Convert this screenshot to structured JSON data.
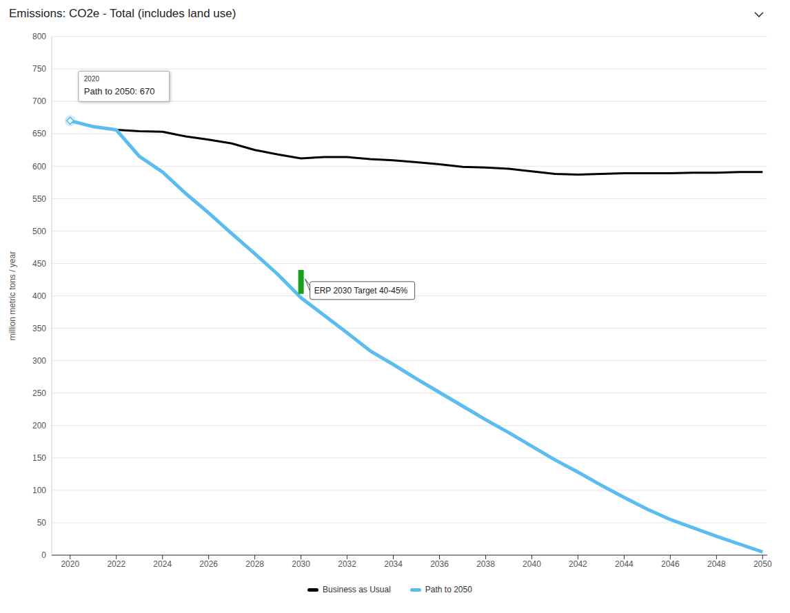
{
  "chart_data": {
    "type": "line",
    "title": "Emissions: CO2e - Total (includes land use)",
    "y_label": "million metric tons / year",
    "x": [
      2020,
      2021,
      2022,
      2023,
      2024,
      2025,
      2026,
      2027,
      2028,
      2029,
      2030,
      2031,
      2032,
      2033,
      2034,
      2035,
      2036,
      2037,
      2038,
      2039,
      2040,
      2041,
      2042,
      2043,
      2044,
      2045,
      2046,
      2047,
      2048,
      2049,
      2050
    ],
    "series": [
      {
        "name": "Business as Usual",
        "color": "#000000",
        "values": [
          670,
          661,
          656,
          654,
          653,
          646,
          641,
          635,
          625,
          618,
          612,
          614,
          614,
          611,
          609,
          606,
          603,
          599,
          598,
          596,
          592,
          588,
          587,
          588,
          589,
          589,
          589,
          590,
          590,
          591,
          591
        ]
      },
      {
        "name": "Path to 2050",
        "color": "#5bbcf0",
        "values": [
          670,
          661,
          656,
          615,
          591,
          558,
          528,
          496,
          465,
          433,
          397,
          370,
          343,
          315,
          294,
          272,
          251,
          230,
          209,
          189,
          168,
          147,
          128,
          108,
          89,
          71,
          55,
          42,
          29,
          17,
          5
        ]
      }
    ],
    "xlim": [
      2019.2,
      2050.2
    ],
    "xticks": [
      2020,
      2022,
      2024,
      2026,
      2028,
      2030,
      2032,
      2034,
      2036,
      2038,
      2040,
      2042,
      2044,
      2046,
      2048,
      2050
    ],
    "ylim": [
      0,
      800
    ],
    "yticks": [
      0,
      50,
      100,
      150,
      200,
      250,
      300,
      350,
      400,
      450,
      500,
      550,
      600,
      650,
      700,
      750,
      800
    ],
    "grid": true,
    "legend": "bottom",
    "annotations": [
      {
        "x": 2020,
        "y": 670,
        "title": "2020",
        "text": "Path to 2050: 670"
      },
      {
        "x": 2030,
        "y_range": [
          403,
          440
        ],
        "text": "ERP 2030 Target 40-45%",
        "color": "#1aa01a"
      }
    ]
  }
}
